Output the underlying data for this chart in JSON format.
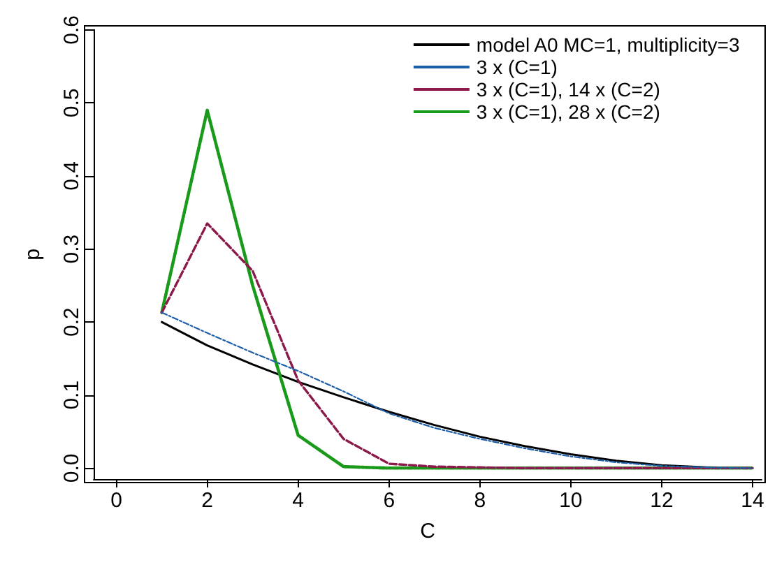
{
  "chart_data": {
    "type": "line",
    "xlabel": "C",
    "ylabel": "p",
    "x": [
      1,
      2,
      3,
      4,
      5,
      6,
      7,
      8,
      9,
      10,
      11,
      12,
      13,
      14
    ],
    "xlim": [
      -0.5,
      14.2
    ],
    "xticks": [
      0,
      2,
      4,
      6,
      8,
      10,
      12,
      14
    ],
    "ylim": [
      -0.015,
      0.6
    ],
    "yticks": [
      {
        "value": 0,
        "label": "0.0"
      },
      {
        "value": 0.1,
        "label": "0.1"
      },
      {
        "value": 0.2,
        "label": "0.2"
      },
      {
        "value": 0.3,
        "label": "0.3"
      },
      {
        "value": 0.4,
        "label": "0.4"
      },
      {
        "value": 0.5,
        "label": "0.5"
      },
      {
        "value": 0.6,
        "label": "0.6"
      }
    ],
    "grid": false,
    "legend": "top right",
    "marker": "none",
    "series": [
      {
        "name": "model A0 MC=1, multiplicity=3",
        "color": "#000000",
        "line_style": "solid",
        "values": [
          0.2,
          0.168,
          0.142,
          0.118,
          0.097,
          0.077,
          0.059,
          0.043,
          0.03,
          0.019,
          0.01,
          0.004,
          0.001,
          0
        ]
      },
      {
        "name": "3 x (C=1)",
        "color": "#1f5fa8",
        "line_style": "dashed",
        "values": [
          0.213,
          0.185,
          0.158,
          0.133,
          0.105,
          0.075,
          0.055,
          0.04,
          0.027,
          0.016,
          0.008,
          0.003,
          0.001,
          0
        ]
      },
      {
        "name": "3 x (C=1), 14 x (C=2)",
        "color": "#8b1a4a",
        "line_style": "dashed",
        "values": [
          0.213,
          0.335,
          0.27,
          0.12,
          0.04,
          0.006,
          0.002,
          0.001,
          0,
          0,
          0,
          0,
          0,
          0
        ]
      },
      {
        "name": "3 x (C=1), 28 x (C=2)",
        "color": "#1a9a1a",
        "line_style": "dotted",
        "values": [
          0.213,
          0.49,
          0.25,
          0.045,
          0.002,
          0,
          0,
          0,
          0,
          0,
          0,
          0,
          0,
          0
        ]
      }
    ]
  }
}
